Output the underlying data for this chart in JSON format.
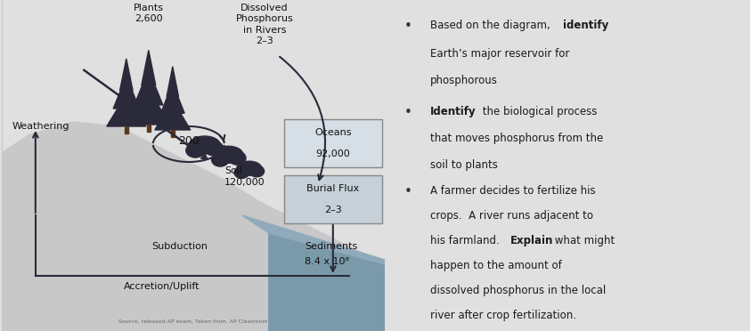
{
  "bg_color": "#e0e0e0",
  "land_color": "#c8c8c8",
  "ocean_color": "#7a9aaa",
  "ocean_mid_color": "#8faabb",
  "text_color": "#1a1a1a",
  "arrow_color": "#2a2a3a",
  "tree_color": "#2a2a3a",
  "box_oceans_color": "#c0ccd4",
  "box_burial_color": "#b0bfc8",
  "labels": {
    "weathering": "Weathering",
    "plants": "Plants\n2,600",
    "dissolved": "Dissolved\nPhosphorus\nin Rivers\n2–3",
    "soil": "Soil\n120,000",
    "cycling": "200",
    "oceans_line1": "Oceans",
    "oceans_line2": "92,000",
    "burial_line1": "Burial Flux",
    "burial_line2": "2–3",
    "sediments_line1": "Sediments",
    "sediments_line2": "8.4 x 10⁸",
    "subduction": "Subduction",
    "accretion": "Accretion/Uplift"
  },
  "source_text": "Source, released AP exam. Taken from, AP Classroom"
}
